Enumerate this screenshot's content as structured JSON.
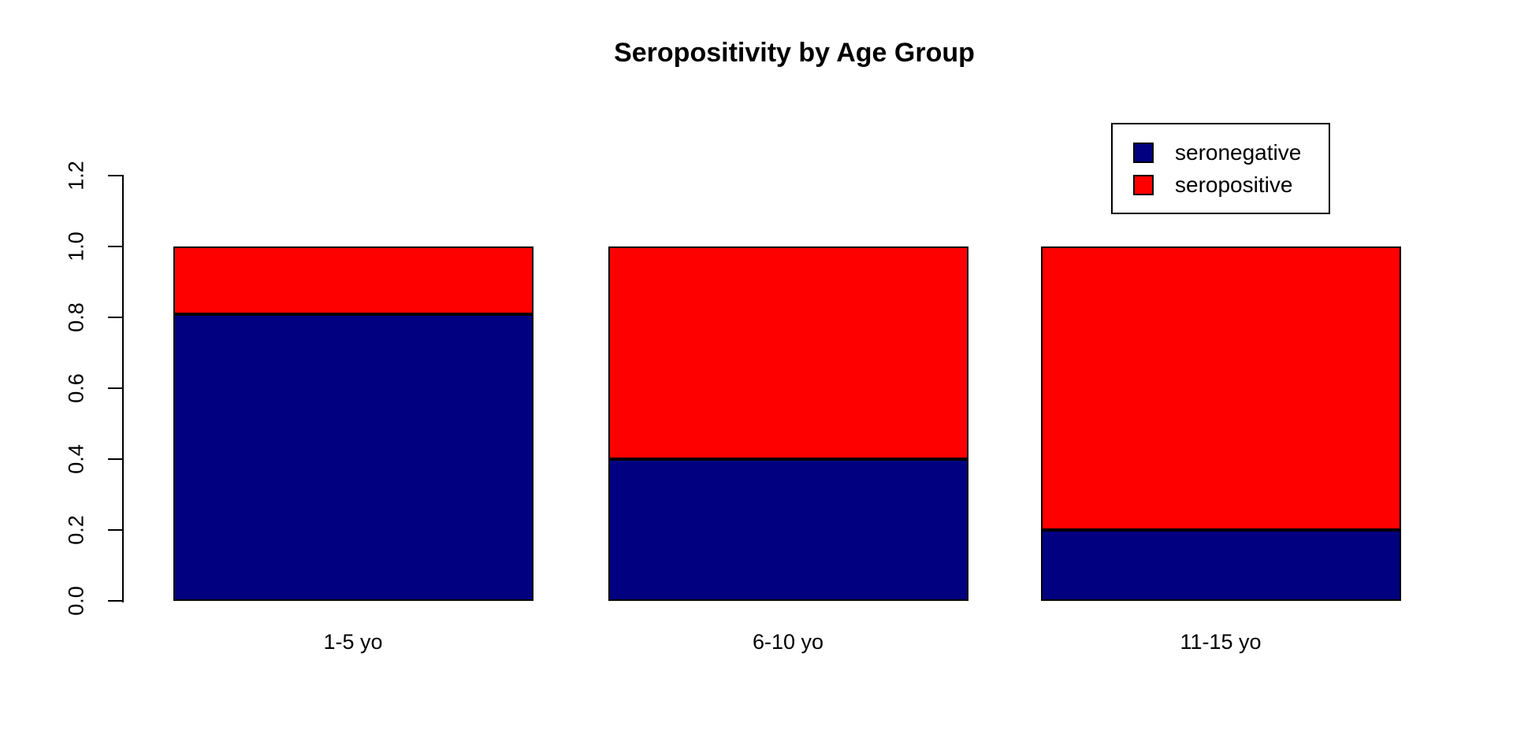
{
  "chart_data": {
    "type": "bar",
    "stacked": true,
    "title": "Seropositivity by Age Group",
    "xlabel": "",
    "ylabel": "",
    "categories": [
      "1-5 yo",
      "6-10 yo",
      "11-15 yo"
    ],
    "series": [
      {
        "name": "seronegative",
        "color": "#000080",
        "values": [
          0.81,
          0.4,
          0.2
        ]
      },
      {
        "name": "seropositive",
        "color": "#FF0000",
        "values": [
          0.19,
          0.6,
          0.8
        ]
      }
    ],
    "ylim": [
      0,
      1.2
    ],
    "yticks": [
      "0.0",
      "0.2",
      "0.4",
      "0.6",
      "0.8",
      "1.0",
      "1.2"
    ],
    "grid": false,
    "legend_position": "top-right",
    "legend_entries": [
      "seronegative",
      "seropositive"
    ]
  }
}
